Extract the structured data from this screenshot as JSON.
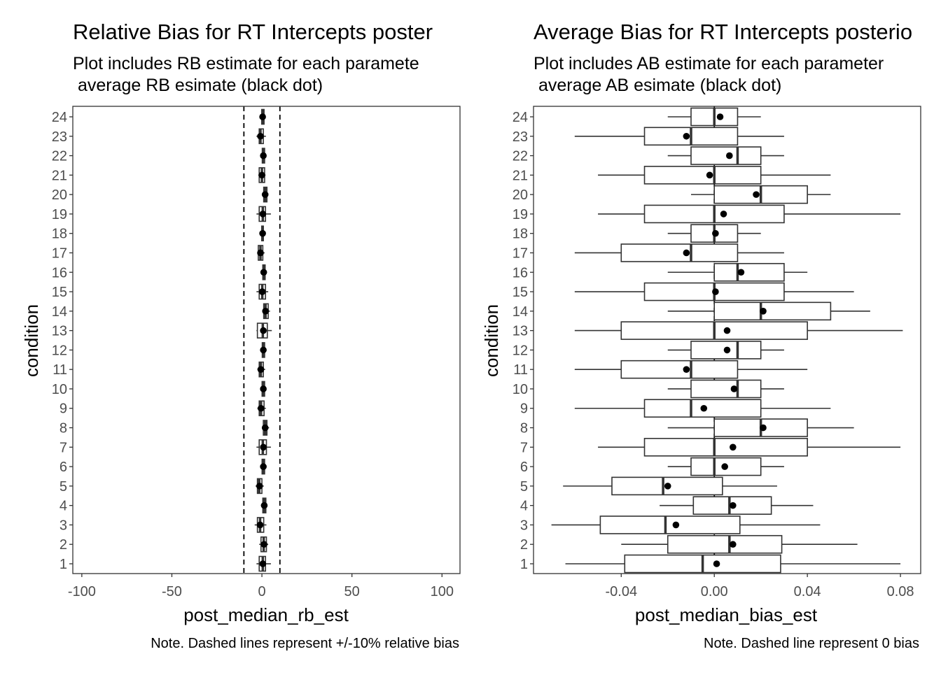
{
  "chart_data": [
    {
      "type": "boxplot",
      "title": "Relative Bias for RT Intercepts poster",
      "subtitle_line1": "Plot includes RB estimate for each paramete",
      "subtitle_line2": " average RB esimate (black dot)",
      "xlabel": "post_median_rb_est",
      "ylabel": "condition",
      "caption": "Note. Dashed lines represent +/-10% relative bias",
      "xlim": [
        -105,
        110
      ],
      "x_ticks": [
        -100,
        -50,
        0,
        50,
        100
      ],
      "x_tick_labels": [
        "-100",
        "-50",
        "0",
        "50",
        "100"
      ],
      "reference_lines": [
        -10,
        10
      ],
      "grid": false,
      "categories": [
        "1",
        "2",
        "3",
        "4",
        "5",
        "6",
        "7",
        "8",
        "9",
        "10",
        "11",
        "12",
        "13",
        "14",
        "15",
        "16",
        "17",
        "18",
        "19",
        "20",
        "21",
        "22",
        "23",
        "24"
      ],
      "boxes": [
        {
          "condition": "1",
          "min": -3,
          "q1": -1.5,
          "median": 0.5,
          "q3": 2,
          "max": 5,
          "mean": 0.5
        },
        {
          "condition": "2",
          "min": -1.5,
          "q1": -0.5,
          "median": 1,
          "q3": 2.5,
          "max": 3.5,
          "mean": 1.2
        },
        {
          "condition": "3",
          "min": -4,
          "q1": -2.5,
          "median": -1,
          "q3": 1,
          "max": 2.5,
          "mean": -1
        },
        {
          "condition": "4",
          "min": -0.5,
          "q1": 0.5,
          "median": 1.3,
          "q3": 2.2,
          "max": 3,
          "mean": 1.3
        },
        {
          "condition": "5",
          "min": -3.5,
          "q1": -2.5,
          "median": -1.5,
          "q3": 0,
          "max": 1,
          "mean": -1.3
        },
        {
          "condition": "6",
          "min": -0.5,
          "q1": 0.1,
          "median": 0.8,
          "q3": 1.5,
          "max": 2.2,
          "mean": 0.8
        },
        {
          "condition": "7",
          "min": -3,
          "q1": -1.5,
          "median": 0.5,
          "q3": 2.5,
          "max": 5,
          "mean": 0.8
        },
        {
          "condition": "8",
          "min": 0,
          "q1": 0.8,
          "median": 1.8,
          "q3": 2.8,
          "max": 4,
          "mean": 1.8
        },
        {
          "condition": "9",
          "min": -2.5,
          "q1": -1.5,
          "median": -0.5,
          "q3": 1.2,
          "max": 2.2,
          "mean": -0.5
        },
        {
          "condition": "10",
          "min": -0.5,
          "q1": 0.1,
          "median": 0.8,
          "q3": 1.5,
          "max": 2.2,
          "mean": 0.8
        },
        {
          "condition": "11",
          "min": -2.5,
          "q1": -1.5,
          "median": -0.6,
          "q3": 0.8,
          "max": 1.8,
          "mean": -0.6
        },
        {
          "condition": "12",
          "min": -0.3,
          "q1": 0.2,
          "median": 0.8,
          "q3": 1.5,
          "max": 2,
          "mean": 0.8
        },
        {
          "condition": "13",
          "min": -3,
          "q1": -2.5,
          "median": 0.5,
          "q3": 3,
          "max": 5.5,
          "mean": 0.8
        },
        {
          "condition": "14",
          "min": 0.2,
          "q1": 1,
          "median": 2,
          "q3": 3.5,
          "max": 4.5,
          "mean": 2
        },
        {
          "condition": "15",
          "min": -3,
          "q1": -1.5,
          "median": 0.2,
          "q3": 2,
          "max": 3.5,
          "mean": 0.2
        },
        {
          "condition": "16",
          "min": 0,
          "q1": 0.5,
          "median": 1,
          "q3": 1.8,
          "max": 2.5,
          "mean": 1
        },
        {
          "condition": "17",
          "min": -2.5,
          "q1": -2,
          "median": -0.8,
          "q3": 0.5,
          "max": 1.5,
          "mean": -0.8
        },
        {
          "condition": "18",
          "min": -0.3,
          "q1": -0.1,
          "median": 0.4,
          "q3": 0.8,
          "max": 1.2,
          "mean": 0.4
        },
        {
          "condition": "19",
          "min": -3,
          "q1": -1.5,
          "median": 0.5,
          "q3": 2,
          "max": 5,
          "mean": 0.5
        },
        {
          "condition": "20",
          "min": 0.2,
          "q1": 1,
          "median": 1.8,
          "q3": 2.8,
          "max": 3.5,
          "mean": 1.8
        },
        {
          "condition": "21",
          "min": -2,
          "q1": -1.5,
          "median": 0,
          "q3": 1.5,
          "max": 2,
          "mean": 0
        },
        {
          "condition": "22",
          "min": -0.3,
          "q1": 0.2,
          "median": 0.8,
          "q3": 1.5,
          "max": 2.2,
          "mean": 0.8
        },
        {
          "condition": "23",
          "min": -3,
          "q1": -1.5,
          "median": -0.8,
          "q3": 0.8,
          "max": 2.2,
          "mean": -0.8
        },
        {
          "condition": "24",
          "min": -0.5,
          "q1": -0.1,
          "median": 0.4,
          "q3": 1.2,
          "max": 1.8,
          "mean": 0.4
        }
      ]
    },
    {
      "type": "boxplot",
      "title": "Average Bias for RT Intercepts posterio",
      "subtitle_line1": "Plot includes AB estimate for each parameter",
      "subtitle_line2": " average AB esimate (black dot)",
      "xlabel": "post_median_bias_est",
      "ylabel": "condition",
      "caption": "Note. Dashed line represent 0 bias",
      "xlim": [
        -0.0777,
        0.0887
      ],
      "x_ticks": [
        -0.04,
        0,
        0.04,
        0.08
      ],
      "x_tick_labels": [
        "-0.04",
        "0.00",
        "0.04",
        "0.08"
      ],
      "reference_lines": [
        0
      ],
      "grid": false,
      "categories": [
        "1",
        "2",
        "3",
        "4",
        "5",
        "6",
        "7",
        "8",
        "9",
        "10",
        "11",
        "12",
        "13",
        "14",
        "15",
        "16",
        "17",
        "18",
        "19",
        "20",
        "21",
        "22",
        "23",
        "24"
      ],
      "boxes": [
        {
          "condition": "1",
          "min": -0.064,
          "q1": -0.0385,
          "median": -0.005,
          "q3": 0.0285,
          "max": 0.08,
          "mean": 0.001
        },
        {
          "condition": "2",
          "min": -0.04,
          "q1": -0.02,
          "median": 0.0065,
          "q3": 0.029,
          "max": 0.0615,
          "mean": 0.008
        },
        {
          "condition": "3",
          "min": -0.07,
          "q1": -0.049,
          "median": -0.021,
          "q3": 0.011,
          "max": 0.0455,
          "mean": -0.0165
        },
        {
          "condition": "4",
          "min": -0.0235,
          "q1": -0.009,
          "median": 0.0065,
          "q3": 0.0245,
          "max": 0.0425,
          "mean": 0.008
        },
        {
          "condition": "5",
          "min": -0.065,
          "q1": -0.044,
          "median": -0.022,
          "q3": 0.0035,
          "max": 0.027,
          "mean": -0.02
        },
        {
          "condition": "6",
          "min": -0.02,
          "q1": -0.01,
          "median": 0,
          "q3": 0.02,
          "max": 0.03,
          "mean": 0.0045
        },
        {
          "condition": "7",
          "min": -0.05,
          "q1": -0.03,
          "median": 0,
          "q3": 0.04,
          "max": 0.08,
          "mean": 0.008
        },
        {
          "condition": "8",
          "min": -0.02,
          "q1": 0,
          "median": 0.02,
          "q3": 0.04,
          "max": 0.06,
          "mean": 0.021
        },
        {
          "condition": "9",
          "min": -0.06,
          "q1": -0.03,
          "median": -0.01,
          "q3": 0.02,
          "max": 0.05,
          "mean": -0.0045
        },
        {
          "condition": "10",
          "min": -0.02,
          "q1": -0.01,
          "median": 0.01,
          "q3": 0.02,
          "max": 0.03,
          "mean": 0.0085
        },
        {
          "condition": "11",
          "min": -0.06,
          "q1": -0.04,
          "median": -0.01,
          "q3": 0.01,
          "max": 0.04,
          "mean": -0.012
        },
        {
          "condition": "12",
          "min": -0.02,
          "q1": -0.01,
          "median": 0.01,
          "q3": 0.02,
          "max": 0.03,
          "mean": 0.0055
        },
        {
          "condition": "13",
          "min": -0.06,
          "q1": -0.04,
          "median": 0,
          "q3": 0.04,
          "max": 0.081,
          "mean": 0.0055
        },
        {
          "condition": "14",
          "min": -0.02,
          "q1": 0,
          "median": 0.02,
          "q3": 0.05,
          "max": 0.067,
          "mean": 0.021
        },
        {
          "condition": "15",
          "min": -0.06,
          "q1": -0.03,
          "median": 0,
          "q3": 0.03,
          "max": 0.06,
          "mean": 0.0005
        },
        {
          "condition": "16",
          "min": -0.02,
          "q1": 0,
          "median": 0.01,
          "q3": 0.03,
          "max": 0.04,
          "mean": 0.0115
        },
        {
          "condition": "17",
          "min": -0.06,
          "q1": -0.04,
          "median": -0.01,
          "q3": 0.01,
          "max": 0.03,
          "mean": -0.012
        },
        {
          "condition": "18",
          "min": -0.02,
          "q1": -0.01,
          "median": 0,
          "q3": 0.01,
          "max": 0.02,
          "mean": 0.0005
        },
        {
          "condition": "19",
          "min": -0.05,
          "q1": -0.03,
          "median": 0,
          "q3": 0.03,
          "max": 0.08,
          "mean": 0.004
        },
        {
          "condition": "20",
          "min": -0.01,
          "q1": 0,
          "median": 0.02,
          "q3": 0.04,
          "max": 0.05,
          "mean": 0.018
        },
        {
          "condition": "21",
          "min": -0.05,
          "q1": -0.03,
          "median": 0,
          "q3": 0.02,
          "max": 0.05,
          "mean": -0.002
        },
        {
          "condition": "22",
          "min": -0.02,
          "q1": -0.01,
          "median": 0.01,
          "q3": 0.02,
          "max": 0.03,
          "mean": 0.0065
        },
        {
          "condition": "23",
          "min": -0.06,
          "q1": -0.03,
          "median": -0.01,
          "q3": 0.01,
          "max": 0.03,
          "mean": -0.012
        },
        {
          "condition": "24",
          "min": -0.02,
          "q1": -0.01,
          "median": 0,
          "q3": 0.01,
          "max": 0.02,
          "mean": 0.0025
        }
      ]
    }
  ]
}
